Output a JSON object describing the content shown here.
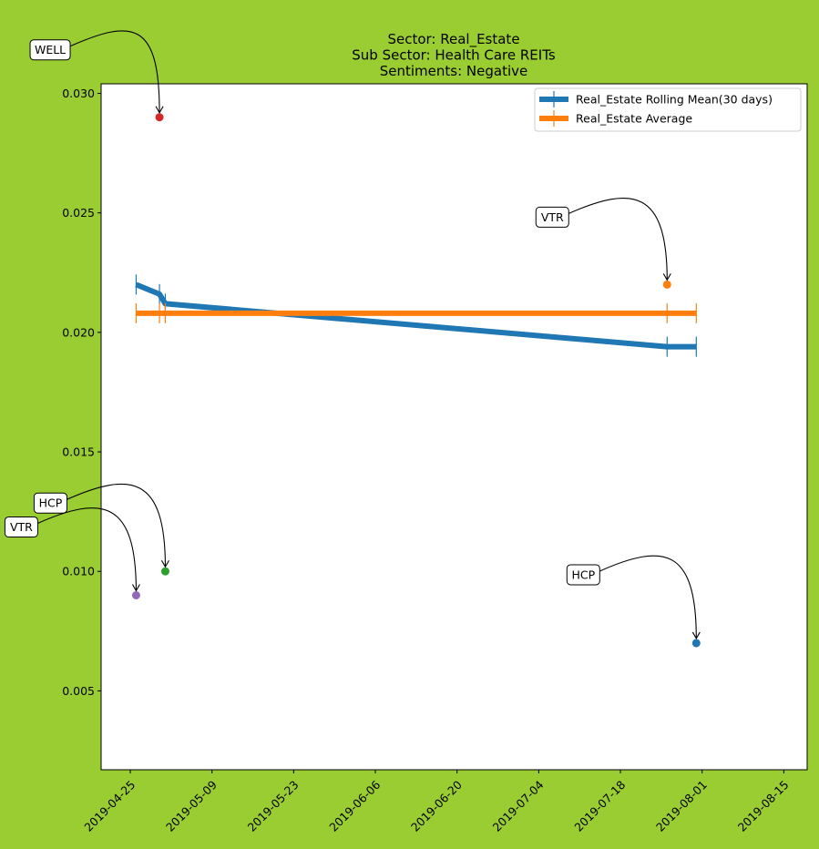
{
  "chart_data": {
    "type": "line",
    "title": [
      "Sector:  Real_Estate",
      "Sub Sector:  Health Care REITs",
      "Sentiments:  Negative"
    ],
    "xlabel": "",
    "ylabel": "",
    "x_ticks": [
      "2019-04-25",
      "2019-05-09",
      "2019-05-23",
      "2019-06-06",
      "2019-06-20",
      "2019-07-04",
      "2019-07-18",
      "2019-08-01",
      "2019-08-15"
    ],
    "xlim": [
      "2019-04-20",
      "2019-08-19"
    ],
    "y_ticks": [
      "0.005",
      "0.010",
      "0.015",
      "0.020",
      "0.025",
      "0.030"
    ],
    "ylim": [
      0.0017,
      0.0304
    ],
    "legend_position": "top-right",
    "series": [
      {
        "name": "Real_Estate Rolling Mean(30 days)",
        "color": "#1f77b4",
        "x": [
          "2019-04-26",
          "2019-04-30",
          "2019-05-01",
          "2019-07-26",
          "2019-07-31"
        ],
        "y": [
          0.022,
          0.0216,
          0.0212,
          0.0194,
          0.0194
        ]
      },
      {
        "name": "Real_Estate Average",
        "color": "#ff7f0e",
        "x": [
          "2019-04-26",
          "2019-04-30",
          "2019-05-01",
          "2019-07-26",
          "2019-07-31"
        ],
        "y": [
          0.0208,
          0.0208,
          0.0208,
          0.0208,
          0.0208
        ]
      }
    ],
    "points": [
      {
        "label": "WELL",
        "x": "2019-04-30",
        "y": 0.029,
        "color": "#d62728"
      },
      {
        "label": "VTR",
        "x": "2019-07-26",
        "y": 0.022,
        "color": "#ff7f0e"
      },
      {
        "label": "HCP",
        "x": "2019-05-01",
        "y": 0.01,
        "color": "#2ca02c"
      },
      {
        "label": "VTR",
        "x": "2019-04-26",
        "y": 0.009,
        "color": "#9467bd"
      },
      {
        "label": "HCP",
        "x": "2019-07-31",
        "y": 0.007,
        "color": "#1f77b4"
      }
    ]
  }
}
